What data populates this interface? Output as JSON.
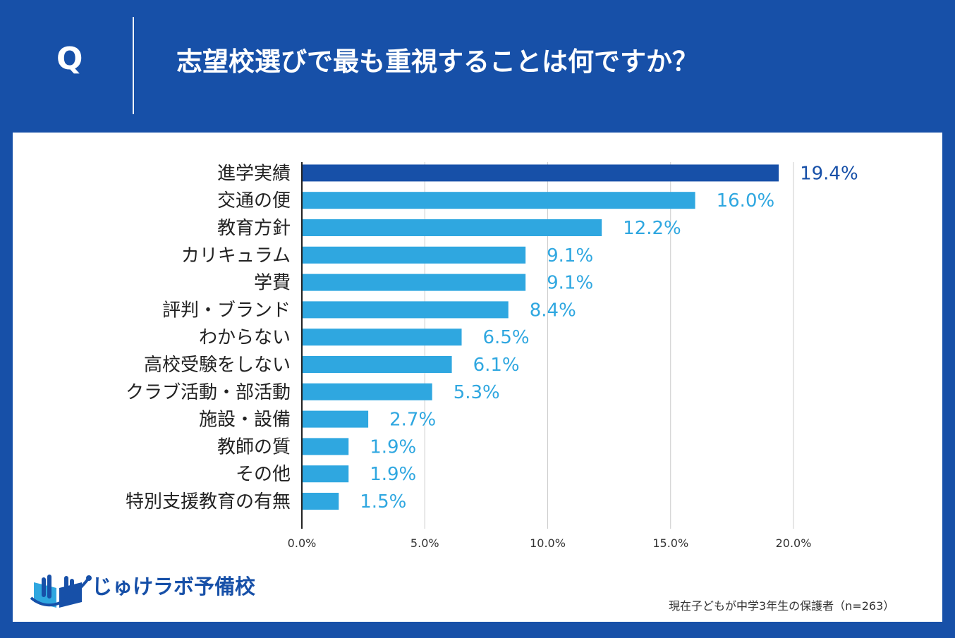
{
  "header": {
    "q_label": "Q",
    "question": "志望校選びで最も重視することは何ですか？"
  },
  "colors": {
    "background": "#1750a8",
    "panel": "#ffffff",
    "highlight_bar": "#1750a8",
    "bar": "#2fa7e0",
    "highlight_label": "#1750a8",
    "label": "#2fa7e0",
    "grid": "#cccccc",
    "axis": "#222222"
  },
  "chart_data": {
    "type": "bar",
    "orientation": "horizontal",
    "title": "志望校選びで最も重視することは何ですか？",
    "categories": [
      "進学実績",
      "交通の便",
      "教育方針",
      "カリキュラム",
      "学費",
      "評判・ブランド",
      "わからない",
      "高校受験をしない",
      "クラブ活動・部活動",
      "施設・設備",
      "教師の質",
      "その他",
      "特別支援教育の有無"
    ],
    "values": [
      19.4,
      16.0,
      12.2,
      9.1,
      9.1,
      8.4,
      6.5,
      6.1,
      5.3,
      2.7,
      1.9,
      1.9,
      1.5
    ],
    "value_labels": [
      "19.4%",
      "16.0%",
      "12.2%",
      "9.1%",
      "9.1%",
      "8.4%",
      "6.5%",
      "6.1%",
      "5.3%",
      "2.7%",
      "1.9%",
      "1.9%",
      "1.5%"
    ],
    "highlight_index": 0,
    "xlim": [
      0,
      20
    ],
    "xticks": [
      0,
      5,
      10,
      15,
      20
    ],
    "xtick_labels": [
      "0.0%",
      "5.0%",
      "10.0%",
      "15.0%",
      "20.0%"
    ],
    "xlabel": "",
    "ylabel": "",
    "grid": true,
    "legend": "none"
  },
  "footer": {
    "logo_text": "じゅけラボ予備校",
    "note": "現在子どもが中学3年生の保護者（n=263）"
  }
}
